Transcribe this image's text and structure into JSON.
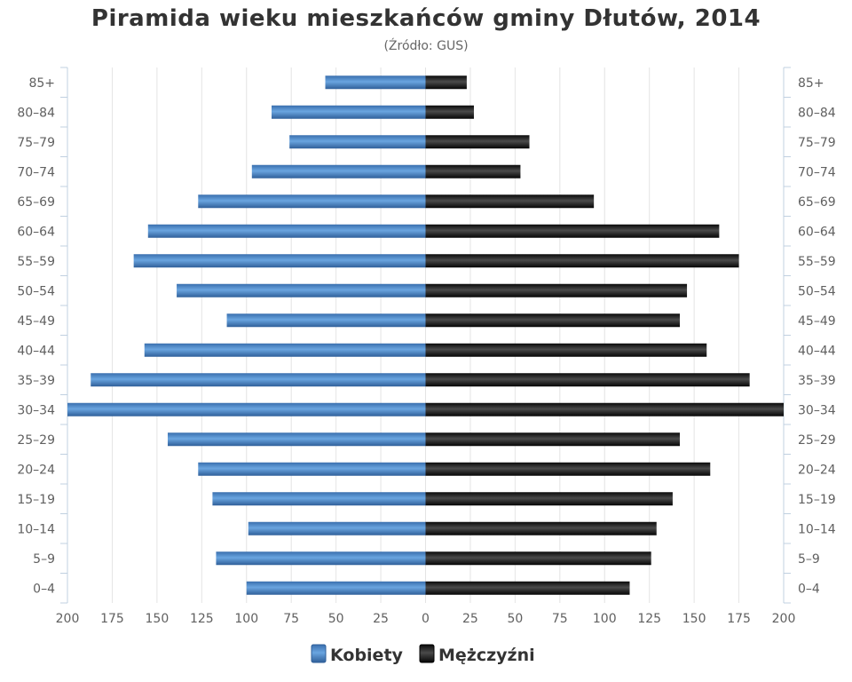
{
  "chart_data": {
    "type": "bar",
    "orientation": "horizontal",
    "layout": "population-pyramid",
    "title": "Piramida wieku mieszkańców gminy Dłutów, 2014",
    "subtitle": "(Źródło: GUS)",
    "categories": [
      "0–4",
      "5–9",
      "10–14",
      "15–19",
      "20–24",
      "25–29",
      "30–34",
      "35–39",
      "40–44",
      "45–49",
      "50–54",
      "55–59",
      "60–64",
      "65–69",
      "70–74",
      "75–79",
      "80–84",
      "85+"
    ],
    "series": [
      {
        "name": "Kobiety",
        "color": "#4a86c5",
        "values": [
          100,
          117,
          99,
          119,
          127,
          144,
          200,
          187,
          157,
          111,
          139,
          163,
          155,
          127,
          97,
          76,
          86,
          56
        ]
      },
      {
        "name": "Mężczyźni",
        "color": "#1a1a1a",
        "values": [
          114,
          126,
          129,
          138,
          159,
          142,
          200,
          181,
          157,
          142,
          146,
          175,
          164,
          94,
          53,
          58,
          27,
          23
        ]
      }
    ],
    "x_ticks": [
      "200",
      "175",
      "150",
      "125",
      "100",
      "75",
      "50",
      "25",
      "0",
      "25",
      "50",
      "75",
      "100",
      "125",
      "150",
      "175",
      "200"
    ],
    "xlim": [
      -200,
      200
    ],
    "grid": true,
    "legend_position": "bottom-center"
  }
}
